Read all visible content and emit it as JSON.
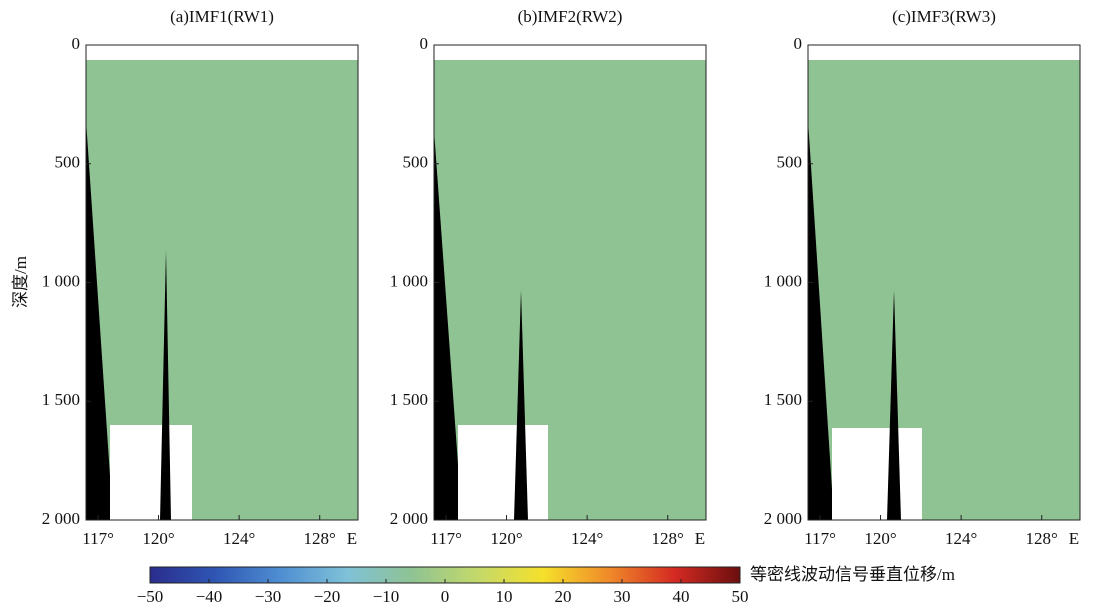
{
  "chart_data": [
    {
      "type": "heatmap",
      "title": "(a)IMF1(RW1)",
      "ylabel": "深度/m",
      "xlabel": "E",
      "xlim": [
        116.4,
        129.9
      ],
      "xticks": [
        {
          "value": 117,
          "label": "117°"
        },
        {
          "value": 120,
          "label": "120°"
        },
        {
          "value": 124,
          "label": "124°"
        },
        {
          "value": 128,
          "label": "128°"
        }
      ],
      "ylim": [
        0,
        2000
      ],
      "y_inverted": true,
      "yticks": [
        0,
        500,
        {
          "value": 1000,
          "label": "1 000"
        },
        {
          "value": 1500,
          "label": "1 500"
        },
        {
          "value": 2000,
          "label": "2 000"
        }
      ]
    },
    {
      "type": "heatmap",
      "title": "(b)IMF2(RW2)",
      "xlabel": "E",
      "xlim": [
        116.4,
        129.9
      ],
      "xticks": [
        {
          "value": 117,
          "label": "117°"
        },
        {
          "value": 120,
          "label": "120°"
        },
        {
          "value": 124,
          "label": "124°"
        },
        {
          "value": 128,
          "label": "128°"
        }
      ],
      "ylim": [
        0,
        2000
      ],
      "y_inverted": true,
      "yticks": [
        0,
        500,
        {
          "value": 1000,
          "label": "1 000"
        },
        {
          "value": 1500,
          "label": "1 500"
        },
        {
          "value": 2000,
          "label": "2 000"
        }
      ]
    },
    {
      "type": "heatmap",
      "title": "(c)IMF3(RW3)",
      "xlabel": "E",
      "xlim": [
        116.4,
        129.9
      ],
      "xticks": [
        {
          "value": 117,
          "label": "117°"
        },
        {
          "value": 120,
          "label": "120°"
        },
        {
          "value": 124,
          "label": "124°"
        },
        {
          "value": 128,
          "label": "128°"
        }
      ],
      "ylim": [
        0,
        2000
      ],
      "y_inverted": true,
      "yticks": [
        0,
        500,
        {
          "value": 1000,
          "label": "1 000"
        },
        {
          "value": 1500,
          "label": "1 500"
        },
        {
          "value": 2000,
          "label": "2 000"
        }
      ]
    },
    {
      "type": "colorbar",
      "label": "等密线波动信号垂直位移/m",
      "clim": [
        -50,
        50
      ],
      "colors": [
        "#2a2d8c",
        "#2f56b4",
        "#4f8fd2",
        "#7fc1d8",
        "#8fc393",
        "#c4d96a",
        "#f5e02a",
        "#f08a2a",
        "#d42a22",
        "#6b0f0f"
      ],
      "ticks": [
        {
          "value": -50,
          "label": "−50"
        },
        {
          "value": -40,
          "label": "−40"
        },
        {
          "value": -30,
          "label": "−30"
        },
        {
          "value": -20,
          "label": "−20"
        },
        {
          "value": -10,
          "label": "−10"
        },
        0,
        10,
        20,
        30,
        40,
        50
      ]
    }
  ]
}
